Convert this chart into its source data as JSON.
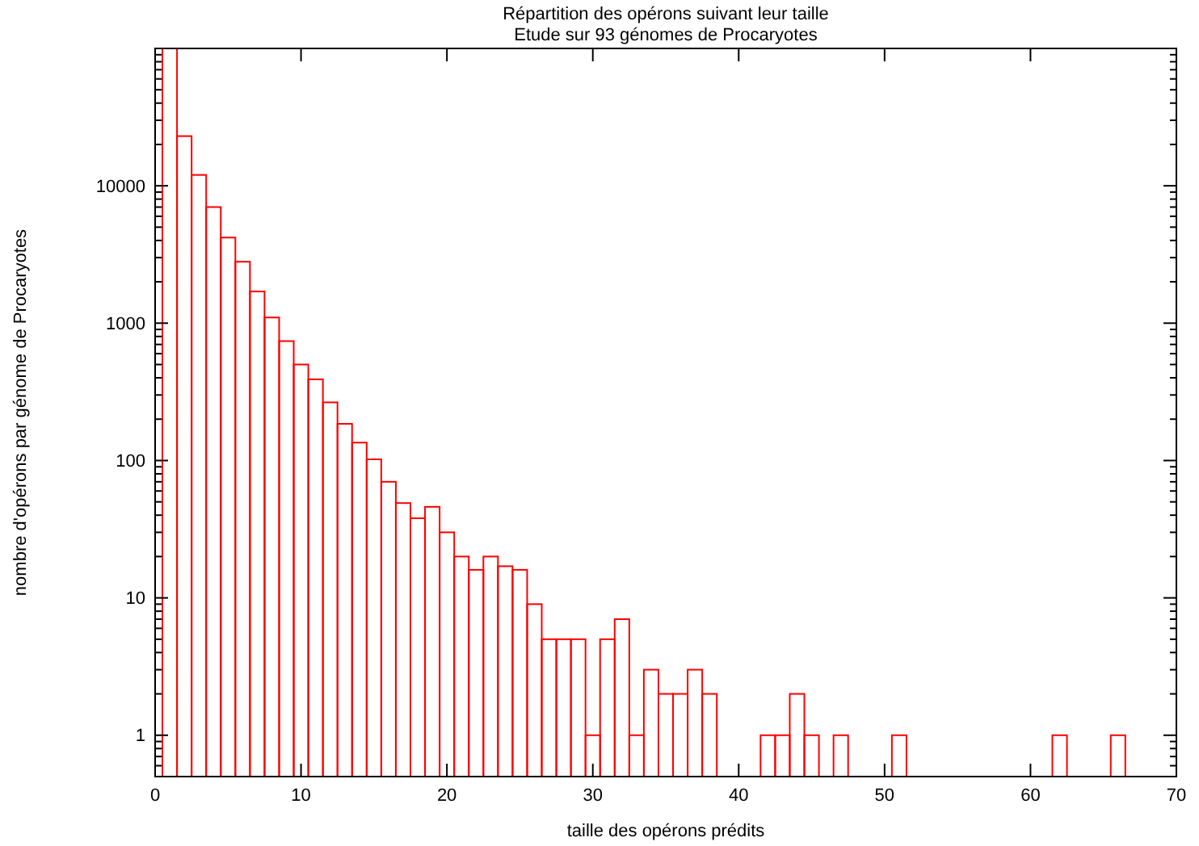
{
  "chart_data": {
    "type": "histogram",
    "title": "Répartition des opérons suivant leur taille",
    "subtitle": "Etude sur 93 génomes de Procaryotes",
    "xlabel": "taille des opérons prédits",
    "ylabel": "nombre d'opérons par génome de Procaryotes",
    "log": "y",
    "grid": false,
    "color": "#ff0000",
    "bins": [
      0.5,
      1.5,
      2.5,
      3.5,
      4.5,
      5.5,
      6.5,
      7.5,
      8.5,
      9.5,
      10.5,
      11.5,
      12.5,
      13.5,
      14.5,
      15.5,
      16.5,
      17.5,
      18.5,
      19.5,
      20.5,
      21.5,
      22.5,
      23.5,
      24.5,
      25.5,
      26.5,
      27.5,
      28.5,
      29.5,
      30.5,
      31.5,
      32.5,
      33.5,
      34.5,
      35.5,
      36.5,
      37.5,
      38.5,
      39.5,
      40.5,
      41.5,
      42.5,
      43.5,
      44.5,
      45.5,
      46.5,
      47.5,
      48.5,
      49.5,
      50.5,
      51.5,
      52.5,
      53.5,
      54.5,
      55.5,
      56.5,
      57.5,
      58.5,
      59.5,
      60.5,
      61.5,
      62.5,
      63.5,
      64.5,
      65.5,
      66.5
    ],
    "values": [
      100000,
      23000,
      12000,
      7000,
      4200,
      2800,
      1700,
      1100,
      740,
      500,
      390,
      265,
      185,
      135,
      102,
      70,
      49,
      38,
      46,
      30,
      20,
      16,
      20,
      17,
      16,
      9,
      5,
      5,
      5,
      1,
      5,
      7,
      1,
      3,
      2,
      2,
      3,
      2,
      null,
      null,
      null,
      1,
      1,
      2,
      1,
      null,
      1,
      null,
      null,
      null,
      1,
      null,
      null,
      null,
      null,
      null,
      null,
      null,
      null,
      null,
      null,
      1,
      null,
      null,
      null,
      1
    ],
    "xlim": [
      0,
      70
    ],
    "xticks": [
      0,
      10,
      20,
      30,
      40,
      50,
      60,
      70
    ],
    "ylim": [
      0.5,
      100000
    ],
    "yticks": [
      1,
      10,
      100,
      1000,
      10000
    ]
  }
}
